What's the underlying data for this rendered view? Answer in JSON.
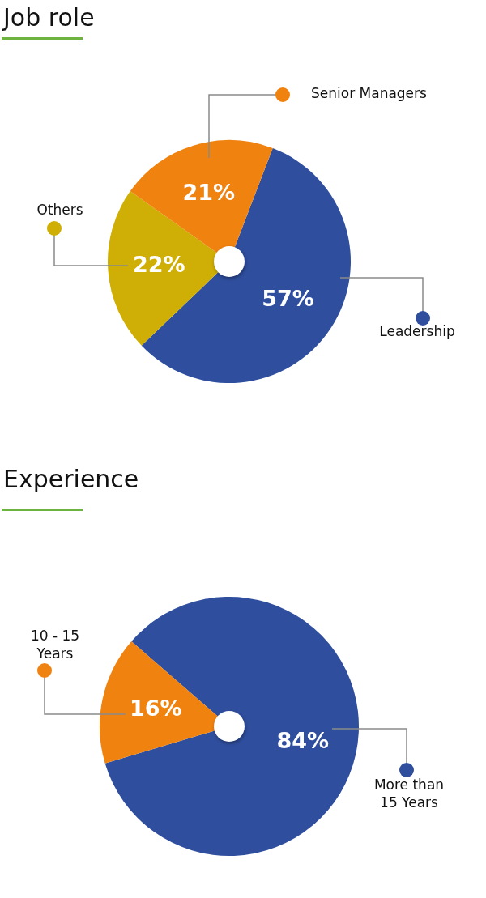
{
  "chart_data": [
    {
      "type": "pie",
      "title": "Job role",
      "categories": [
        "Leadership",
        "Others",
        "Senior Managers"
      ],
      "values": [
        57,
        22,
        21
      ],
      "colors": [
        "#2f4e9e",
        "#cfae05",
        "#f0820f"
      ],
      "value_labels": [
        "57%",
        "22%",
        "21%"
      ]
    },
    {
      "type": "pie",
      "title": "Experience",
      "categories": [
        "More than 15 Years",
        "10 - 15 Years"
      ],
      "values": [
        84,
        16
      ],
      "colors": [
        "#2f4e9e",
        "#f0820f"
      ],
      "value_labels": [
        "84%",
        "16%"
      ]
    }
  ]
}
